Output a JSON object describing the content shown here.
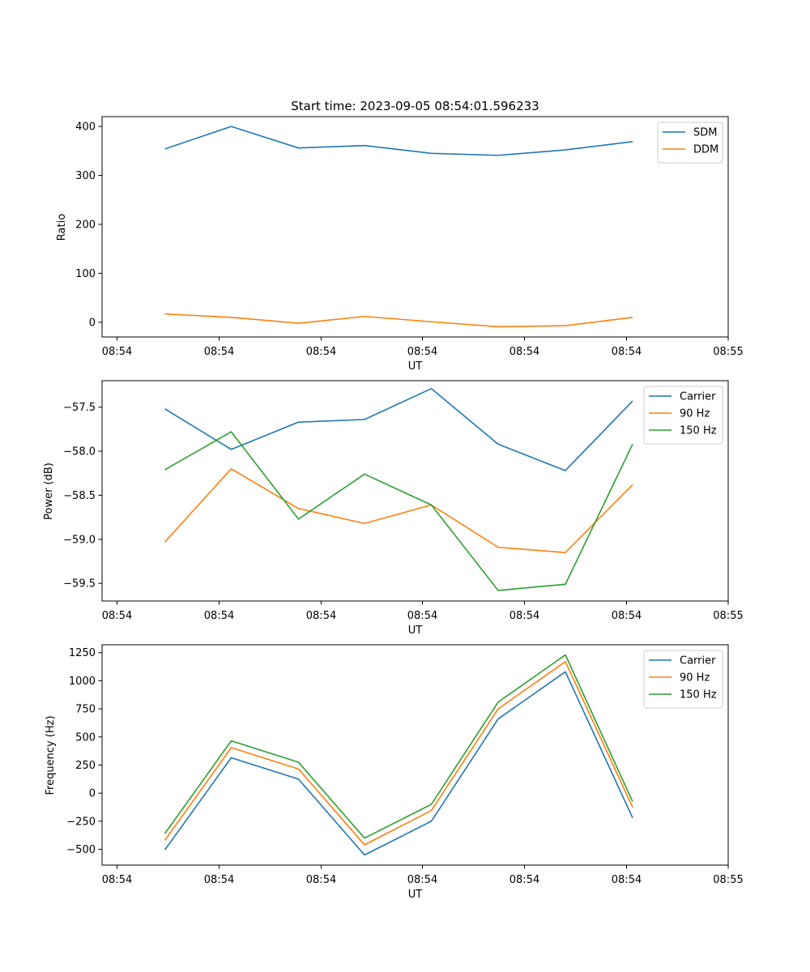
{
  "chart_data": [
    {
      "type": "line",
      "title": "Start time: 2023-09-05 08:54:01.596233",
      "xlabel": "UT",
      "ylabel": "Ratio",
      "xticks": [
        "08:54",
        "08:54",
        "08:54",
        "08:54",
        "08:54",
        "08:54",
        "08:55"
      ],
      "yticks": [
        0,
        100,
        200,
        300,
        400
      ],
      "ytick_labels": [
        "0",
        "100",
        "200",
        "300",
        "400"
      ],
      "ylim": [
        -30,
        420
      ],
      "legend_position": "top-right",
      "series": [
        {
          "name": "SDM",
          "color": "#1f77b4",
          "values": [
            354,
            400,
            356,
            361,
            345,
            341,
            352,
            369
          ]
        },
        {
          "name": "DDM",
          "color": "#ff7f0e",
          "values": [
            17,
            10,
            -2,
            12,
            1,
            -9,
            -7,
            10
          ]
        }
      ]
    },
    {
      "type": "line",
      "title": "",
      "xlabel": "UT",
      "ylabel": "Power (dB)",
      "xticks": [
        "08:54",
        "08:54",
        "08:54",
        "08:54",
        "08:54",
        "08:54",
        "08:55"
      ],
      "yticks": [
        -57.5,
        -58.0,
        -58.5,
        -59.0,
        -59.5
      ],
      "ytick_labels": [
        "−57.5",
        "−58.0",
        "−58.5",
        "−59.0",
        "−59.5"
      ],
      "ylim": [
        -59.7,
        -57.2
      ],
      "legend_position": "top-right",
      "series": [
        {
          "name": "Carrier",
          "color": "#1f77b4",
          "values": [
            -57.52,
            -57.98,
            -57.67,
            -57.64,
            -57.29,
            -57.92,
            -58.22,
            -57.43
          ]
        },
        {
          "name": "90 Hz",
          "color": "#ff7f0e",
          "values": [
            -59.03,
            -58.2,
            -58.65,
            -58.82,
            -58.61,
            -59.09,
            -59.15,
            -58.38
          ]
        },
        {
          "name": "150 Hz",
          "color": "#2ca02c",
          "values": [
            -58.21,
            -57.78,
            -58.77,
            -58.26,
            -58.61,
            -59.58,
            -59.51,
            -57.92
          ]
        }
      ]
    },
    {
      "type": "line",
      "title": "",
      "xlabel": "UT",
      "ylabel": "Frequency (Hz)",
      "xticks": [
        "08:54",
        "08:54",
        "08:54",
        "08:54",
        "08:54",
        "08:54",
        "08:55"
      ],
      "yticks": [
        -500,
        -250,
        0,
        250,
        500,
        750,
        1000,
        1250
      ],
      "ytick_labels": [
        "−500",
        "−250",
        "0",
        "250",
        "500",
        "750",
        "1000",
        "1250"
      ],
      "ylim": [
        -640,
        1320
      ],
      "legend_position": "top-right",
      "series": [
        {
          "name": "Carrier",
          "color": "#1f77b4",
          "values": [
            -505,
            315,
            125,
            -550,
            -250,
            660,
            1080,
            -220
          ]
        },
        {
          "name": "90 Hz",
          "color": "#ff7f0e",
          "values": [
            -420,
            405,
            215,
            -460,
            -155,
            750,
            1170,
            -125
          ]
        },
        {
          "name": "150 Hz",
          "color": "#2ca02c",
          "values": [
            -360,
            465,
            275,
            -400,
            -100,
            810,
            1230,
            -75
          ]
        }
      ]
    }
  ]
}
